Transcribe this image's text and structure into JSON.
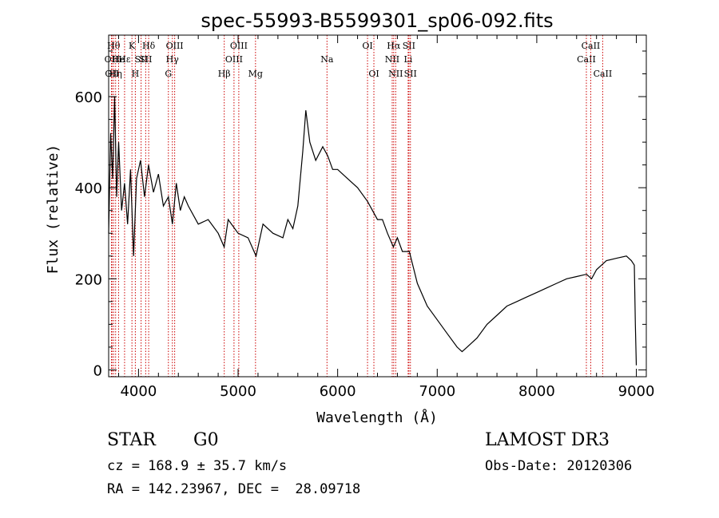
{
  "chart_data": {
    "type": "line",
    "title": "spec-55993-B5599301_sp06-092.fits",
    "xlabel": "Wavelength (Å)",
    "ylabel": "Flux (relative)",
    "xlim": [
      3700,
      9100
    ],
    "ylim": [
      -15,
      735
    ],
    "x_ticks": [
      4000,
      5000,
      6000,
      7000,
      8000,
      9000
    ],
    "y_ticks": [
      0,
      200,
      400,
      600
    ],
    "grid": false,
    "series": [
      {
        "name": "spectrum",
        "x": [
          3700,
          3720,
          3740,
          3760,
          3780,
          3800,
          3830,
          3860,
          3890,
          3920,
          3950,
          3980,
          4020,
          4060,
          4100,
          4150,
          4200,
          4250,
          4300,
          4340,
          4380,
          4420,
          4460,
          4500,
          4600,
          4700,
          4800,
          4860,
          4900,
          5000,
          5100,
          5180,
          5250,
          5350,
          5450,
          5500,
          5550,
          5600,
          5650,
          5680,
          5720,
          5780,
          5850,
          5900,
          5950,
          6000,
          6100,
          6200,
          6300,
          6400,
          6450,
          6500,
          6560,
          6600,
          6650,
          6720,
          6800,
          6900,
          7000,
          7100,
          7200,
          7250,
          7300,
          7400,
          7500,
          7600,
          7700,
          7800,
          7900,
          8000,
          8100,
          8200,
          8300,
          8400,
          8500,
          8550,
          8600,
          8650,
          8700,
          8800,
          8900,
          8950,
          8980,
          8990,
          9000
        ],
        "y": [
          300,
          520,
          420,
          600,
          380,
          500,
          350,
          410,
          320,
          440,
          250,
          420,
          460,
          380,
          450,
          390,
          430,
          360,
          380,
          320,
          410,
          350,
          380,
          360,
          320,
          330,
          300,
          270,
          330,
          300,
          290,
          250,
          320,
          300,
          290,
          330,
          310,
          360,
          480,
          570,
          500,
          460,
          490,
          470,
          440,
          440,
          420,
          400,
          370,
          330,
          330,
          300,
          270,
          290,
          260,
          260,
          190,
          140,
          110,
          80,
          50,
          40,
          50,
          70,
          100,
          120,
          140,
          150,
          160,
          170,
          180,
          190,
          200,
          205,
          210,
          200,
          220,
          230,
          240,
          245,
          250,
          240,
          230,
          100,
          10
        ]
      }
    ],
    "line_markers": [
      {
        "wl": 3728,
        "label": "OII",
        "row": 1
      },
      {
        "wl": 3734,
        "label": "OII",
        "row": 2
      },
      {
        "wl": 3750,
        "label": "Hθ",
        "row": 0
      },
      {
        "wl": 3770,
        "label": "Hη",
        "row": 2
      },
      {
        "wl": 3800,
        "label": "He",
        "row": 1
      },
      {
        "wl": 3860,
        "label": "Hε",
        "row": 1
      },
      {
        "wl": 3934,
        "label": "K",
        "row": 0
      },
      {
        "wl": 3968,
        "label": "H",
        "row": 2
      },
      {
        "wl": 4026,
        "label": "SII",
        "row": 1
      },
      {
        "wl": 4072,
        "label": "SII",
        "row": 1
      },
      {
        "wl": 4102,
        "label": "Hδ",
        "row": 0
      },
      {
        "wl": 4300,
        "label": "G",
        "row": 2
      },
      {
        "wl": 4340,
        "label": "Hγ",
        "row": 1
      },
      {
        "wl": 4363,
        "label": "OIII",
        "row": 0
      },
      {
        "wl": 4861,
        "label": "Hβ",
        "row": 2
      },
      {
        "wl": 4959,
        "label": "OIII",
        "row": 1
      },
      {
        "wl": 5007,
        "label": "OIII",
        "row": 0
      },
      {
        "wl": 5175,
        "label": "Mg",
        "row": 2
      },
      {
        "wl": 5893,
        "label": "Na",
        "row": 1
      },
      {
        "wl": 6300,
        "label": "OI",
        "row": 0
      },
      {
        "wl": 6364,
        "label": "OI",
        "row": 2
      },
      {
        "wl": 6548,
        "label": "NII",
        "row": 1
      },
      {
        "wl": 6563,
        "label": "Hα",
        "row": 0
      },
      {
        "wl": 6583,
        "label": "NII",
        "row": 2
      },
      {
        "wl": 6708,
        "label": "Li",
        "row": 1
      },
      {
        "wl": 6716,
        "label": "SII",
        "row": 0
      },
      {
        "wl": 6731,
        "label": "SII",
        "row": 2
      },
      {
        "wl": 8498,
        "label": "CaII",
        "row": 1
      },
      {
        "wl": 8542,
        "label": "CaII",
        "row": 0
      },
      {
        "wl": 8662,
        "label": "CaII",
        "row": 2
      }
    ]
  },
  "info": {
    "class": "STAR",
    "subclass": "G0",
    "survey": "LAMOST DR3",
    "cz": "cz = 168.9 ± 35.7 km/s",
    "obs_date": "Obs-Date: 20120306",
    "radec": "RA = 142.23967, DEC =  28.09718"
  }
}
